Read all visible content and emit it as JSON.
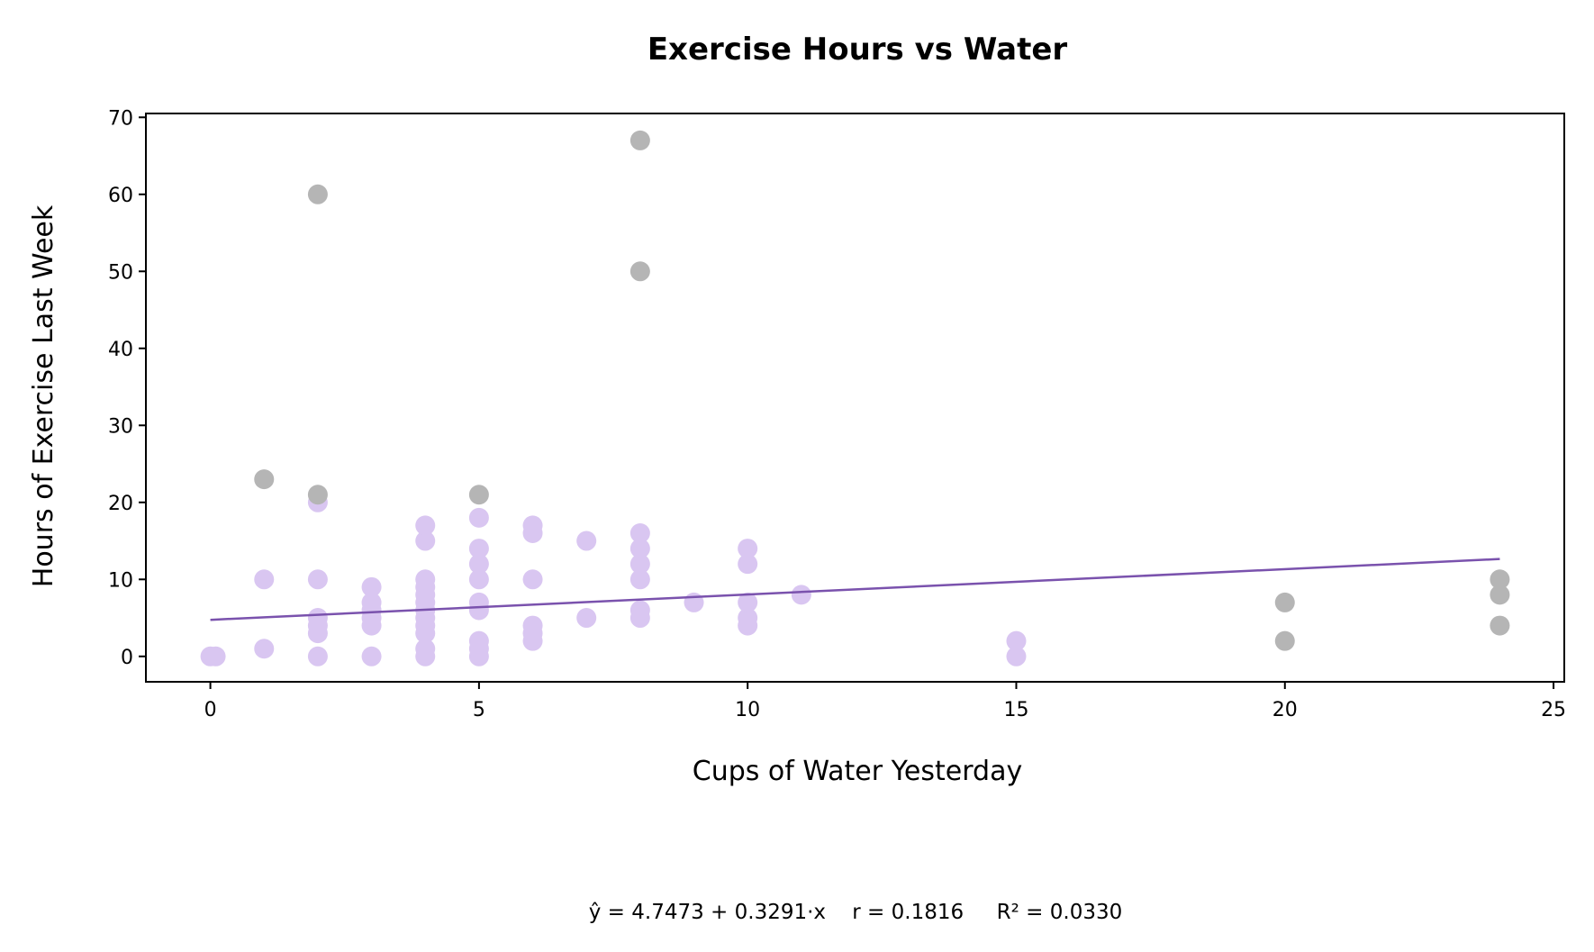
{
  "chart_data": {
    "type": "scatter",
    "title": "Exercise Hours vs Water",
    "xlabel": "Cups of Water Yesterday",
    "ylabel": "Hours of Exercise Last Week",
    "xlim": [
      -1.2,
      25.2
    ],
    "ylim": [
      -3.3,
      70.5
    ],
    "xticks": [
      0,
      5,
      10,
      15,
      20,
      25
    ],
    "yticks": [
      0,
      10,
      20,
      30,
      40,
      50,
      60,
      70
    ],
    "grid": false,
    "series": [
      {
        "role": "included",
        "color": "#d9c6f1",
        "points": [
          [
            0,
            0
          ],
          [
            0.1,
            0
          ],
          [
            1,
            1
          ],
          [
            1,
            10
          ],
          [
            2,
            0
          ],
          [
            2,
            3
          ],
          [
            2,
            4
          ],
          [
            2,
            5
          ],
          [
            2,
            10
          ],
          [
            2,
            20
          ],
          [
            3,
            0
          ],
          [
            3,
            4
          ],
          [
            3,
            5
          ],
          [
            3,
            6
          ],
          [
            3,
            7
          ],
          [
            3,
            9
          ],
          [
            4,
            0
          ],
          [
            4,
            1
          ],
          [
            4,
            3
          ],
          [
            4,
            4
          ],
          [
            4,
            5
          ],
          [
            4,
            6
          ],
          [
            4,
            7
          ],
          [
            4,
            8
          ],
          [
            4,
            9
          ],
          [
            4,
            10
          ],
          [
            4,
            15
          ],
          [
            4,
            17
          ],
          [
            5,
            0
          ],
          [
            5,
            1
          ],
          [
            5,
            2
          ],
          [
            5,
            6
          ],
          [
            5,
            7
          ],
          [
            5,
            10
          ],
          [
            5,
            12
          ],
          [
            5,
            14
          ],
          [
            5,
            18
          ],
          [
            6,
            2
          ],
          [
            6,
            3
          ],
          [
            6,
            4
          ],
          [
            6,
            10
          ],
          [
            6,
            16
          ],
          [
            6,
            17
          ],
          [
            7,
            5
          ],
          [
            7,
            15
          ],
          [
            8,
            5
          ],
          [
            8,
            6
          ],
          [
            8,
            10
          ],
          [
            8,
            12
          ],
          [
            8,
            14
          ],
          [
            8,
            16
          ],
          [
            9,
            7
          ],
          [
            10,
            4
          ],
          [
            10,
            5
          ],
          [
            10,
            7
          ],
          [
            10,
            12
          ],
          [
            10,
            14
          ],
          [
            11,
            8
          ],
          [
            15,
            0
          ],
          [
            15,
            2
          ]
        ]
      },
      {
        "role": "outliers",
        "color": "#b5b5b5",
        "points": [
          [
            1,
            23
          ],
          [
            2,
            21
          ],
          [
            2,
            60
          ],
          [
            5,
            21
          ],
          [
            8,
            50
          ],
          [
            8,
            67
          ],
          [
            20,
            2
          ],
          [
            20,
            7
          ],
          [
            24,
            4
          ],
          [
            24,
            8
          ],
          [
            24,
            10
          ]
        ]
      }
    ],
    "regression": {
      "intercept": 4.7473,
      "slope": 0.3291,
      "x_range": [
        0,
        24
      ],
      "color": "#7a52ad"
    },
    "stats_text": "ŷ = 4.7473 + 0.3291·x    r = 0.1816     R² = 0.0330"
  }
}
